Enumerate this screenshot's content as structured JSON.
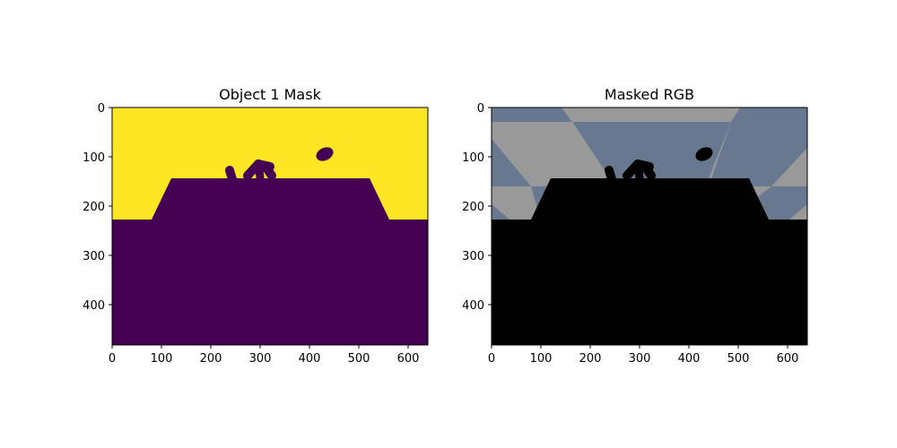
{
  "panels": [
    {
      "title": "Object 1 Mask",
      "x_ticks": [
        "0",
        "100",
        "200",
        "300",
        "400",
        "500",
        "600"
      ],
      "y_ticks": [
        "0",
        "100",
        "200",
        "300",
        "400"
      ],
      "colors": {
        "background": "#fde725",
        "object": "#440154"
      }
    },
    {
      "title": "Masked RGB",
      "x_ticks": [
        "0",
        "100",
        "200",
        "300",
        "400",
        "500",
        "600"
      ],
      "y_ticks": [
        "0",
        "100",
        "200",
        "300",
        "400"
      ],
      "colors": {
        "gray": "#999999",
        "blue": "#687891",
        "object": "#000000"
      }
    }
  ]
}
